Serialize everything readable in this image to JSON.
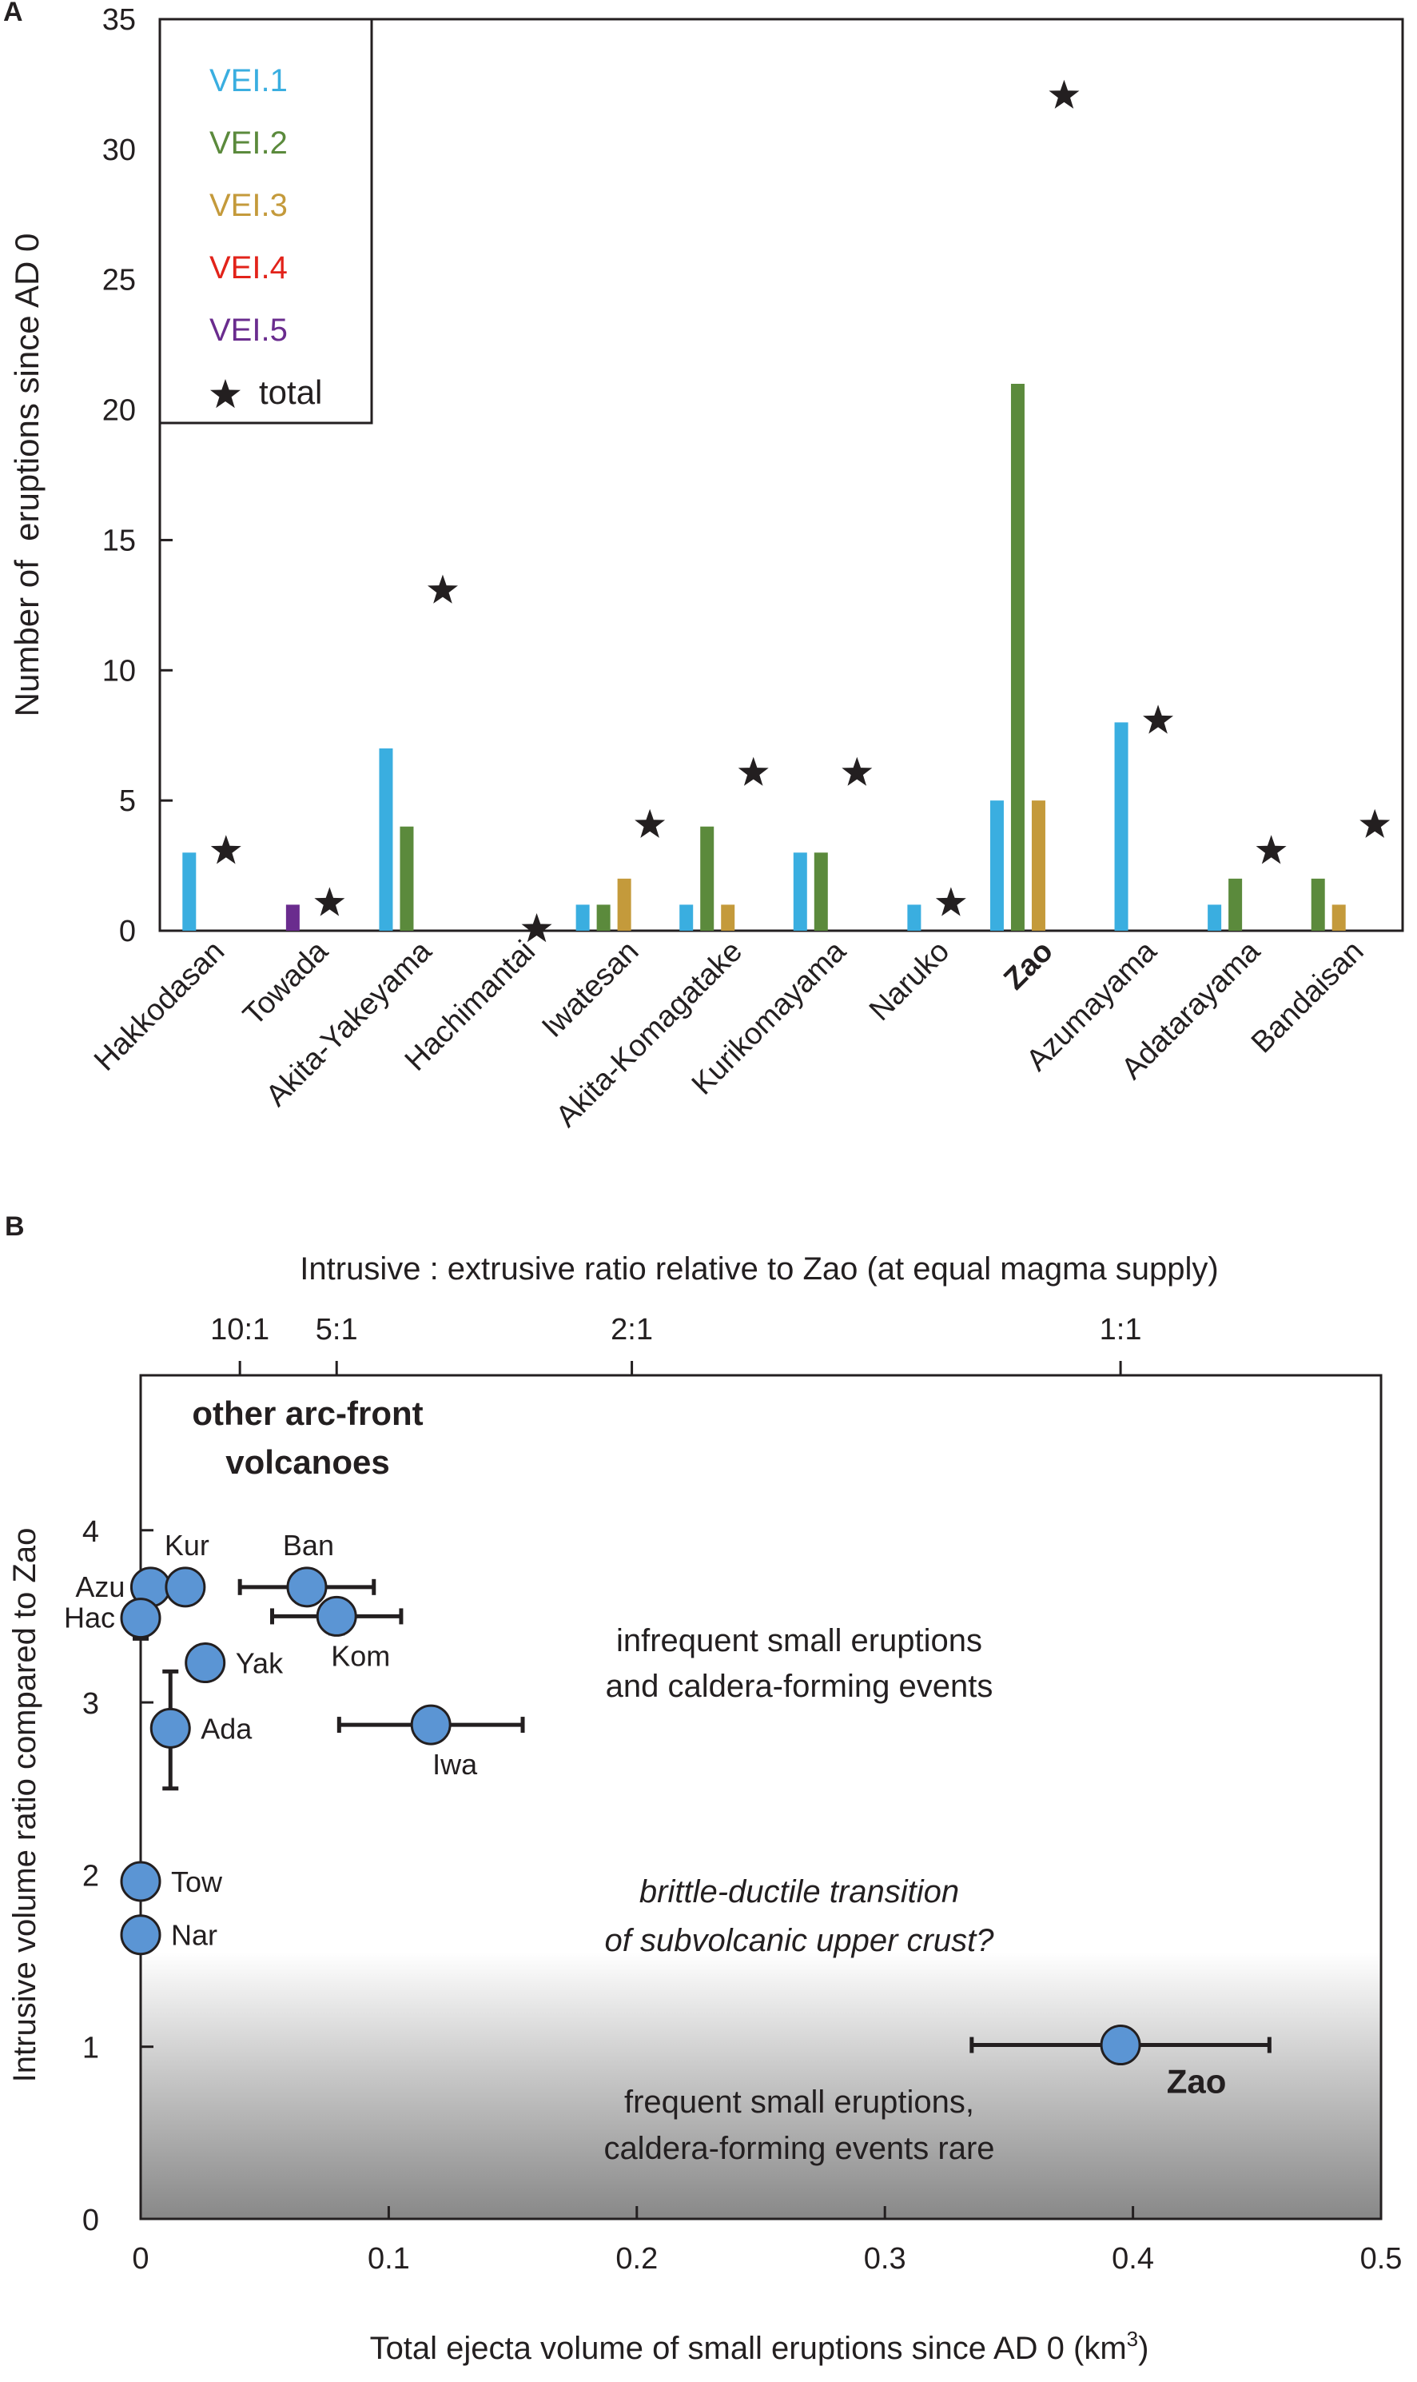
{
  "colors": {
    "vei1": "#3aaee0",
    "vei2": "#5b8a3c",
    "vei3": "#c49a3b",
    "vei4": "#e2231a",
    "vei5": "#6a2c8e",
    "total": "#231f20",
    "marker": "#5b95d4",
    "axis": "#231f20"
  },
  "chart_data": [
    {
      "panel": "A",
      "type": "bar",
      "ylabel": "Number of  eruptions since AD 0",
      "ylim": [
        0,
        35
      ],
      "yticks": [
        0,
        5,
        10,
        15,
        20,
        25,
        30,
        35
      ],
      "categories": [
        "Hakkodasan",
        "Towada",
        "Akita-Yakeyama",
        "Hachimantai",
        "Iwatesan",
        "Akita-Komagatake",
        "Kurikomayama",
        "Naruko",
        "Zao",
        "Azumayama",
        "Adatarayama",
        "Bandaisan"
      ],
      "bold_category": "Zao",
      "series": [
        {
          "name": "VEI.1",
          "color_key": "vei1",
          "values": [
            3,
            0,
            7,
            0,
            1,
            1,
            3,
            1,
            5,
            8,
            1,
            0
          ]
        },
        {
          "name": "VEI.2",
          "color_key": "vei2",
          "values": [
            0,
            0,
            4,
            0,
            1,
            4,
            3,
            0,
            21,
            0,
            2,
            2
          ]
        },
        {
          "name": "VEI.3",
          "color_key": "vei3",
          "values": [
            0,
            0,
            0,
            0,
            2,
            1,
            0,
            0,
            5,
            0,
            0,
            1
          ]
        },
        {
          "name": "VEI.4",
          "color_key": "vei4",
          "values": [
            0,
            0,
            0,
            0,
            0,
            0,
            0,
            0,
            0,
            0,
            0,
            0
          ]
        },
        {
          "name": "VEI.5",
          "color_key": "vei5",
          "values": [
            0,
            1,
            0,
            0,
            0,
            0,
            0,
            0,
            0,
            0,
            0,
            0
          ]
        }
      ],
      "totals": [
        3,
        1,
        13,
        0,
        4,
        6,
        6,
        1,
        32,
        8,
        3,
        4
      ],
      "legend": {
        "position": "top-left",
        "entries": [
          "VEI.1",
          "VEI.2",
          "VEI.3",
          "VEI.4",
          "VEI.5",
          "total"
        ]
      }
    },
    {
      "panel": "B",
      "type": "scatter",
      "xlabel": "Total ejecta volume of small eruptions since AD 0 (km",
      "xlabel_sup": "3",
      "xlabel_close": ")",
      "ylabel": "Intrusive volume ratio compared to Zao",
      "xlim": [
        0,
        0.5
      ],
      "ylim": [
        0,
        4.9
      ],
      "xticks": [
        0,
        0.1,
        0.2,
        0.3,
        0.4,
        0.5
      ],
      "xtick_labels": [
        "0",
        "0.1",
        "0.2",
        "0.3",
        "0.4",
        "0.5"
      ],
      "yticks": [
        0,
        1,
        2,
        3,
        4
      ],
      "top_axis": {
        "title": "Intrusive : extrusive ratio relative to Zao (at equal magma supply)",
        "ticks": [
          {
            "label": "10:1",
            "x": 0.04
          },
          {
            "label": "5:1",
            "x": 0.079
          },
          {
            "label": "2:1",
            "x": 0.198
          },
          {
            "label": "1:1",
            "x": 0.395
          }
        ]
      },
      "points": [
        {
          "label": "Azu",
          "x": 0.004,
          "y": 3.67,
          "label_side": "left"
        },
        {
          "label": "Kur",
          "x": 0.018,
          "y": 3.67,
          "label_side": "above"
        },
        {
          "label": "Hac",
          "x": 0.0,
          "y": 3.49,
          "label_side": "left",
          "yerr": [
            3.37,
            3.49
          ]
        },
        {
          "label": "Ban",
          "x": 0.067,
          "y": 3.67,
          "label_side": "above",
          "xerr": [
            0.04,
            0.094
          ]
        },
        {
          "label": "Kom",
          "x": 0.079,
          "y": 3.5,
          "label_side": "below",
          "xerr": [
            0.053,
            0.105
          ],
          "yerr": [
            3.4,
            3.5
          ]
        },
        {
          "label": "Yak",
          "x": 0.026,
          "y": 3.23,
          "label_side": "right"
        },
        {
          "label": "Ada",
          "x": 0.012,
          "y": 2.85,
          "label_side": "right",
          "yerr": [
            2.5,
            3.18
          ]
        },
        {
          "label": "Iwa",
          "x": 0.117,
          "y": 2.87,
          "label_side": "below",
          "xerr": [
            0.08,
            0.154
          ]
        },
        {
          "label": "Tow",
          "x": 0.0,
          "y": 1.96,
          "label_side": "right"
        },
        {
          "label": "Nar",
          "x": 0.0,
          "y": 1.65,
          "label_side": "right"
        },
        {
          "label": "Zao",
          "x": 0.395,
          "y": 1.01,
          "label_side": "below-right",
          "bold": true,
          "xerr": [
            0.335,
            0.455
          ]
        }
      ],
      "annotations": {
        "group_title_1": "other arc-front",
        "group_title_2": "volcanoes",
        "upper_1": "infrequent small eruptions",
        "upper_2": "and caldera-forming events",
        "mid_1": "brittle-ductile transition",
        "mid_2": "of subvolcanic upper crust?",
        "lower_1": "frequent small eruptions,",
        "lower_2": "caldera-forming events rare"
      },
      "gradient_band": {
        "from_y": 0,
        "to_y": 1.55
      }
    }
  ],
  "panel_labels": {
    "a": "A",
    "b": "B"
  }
}
